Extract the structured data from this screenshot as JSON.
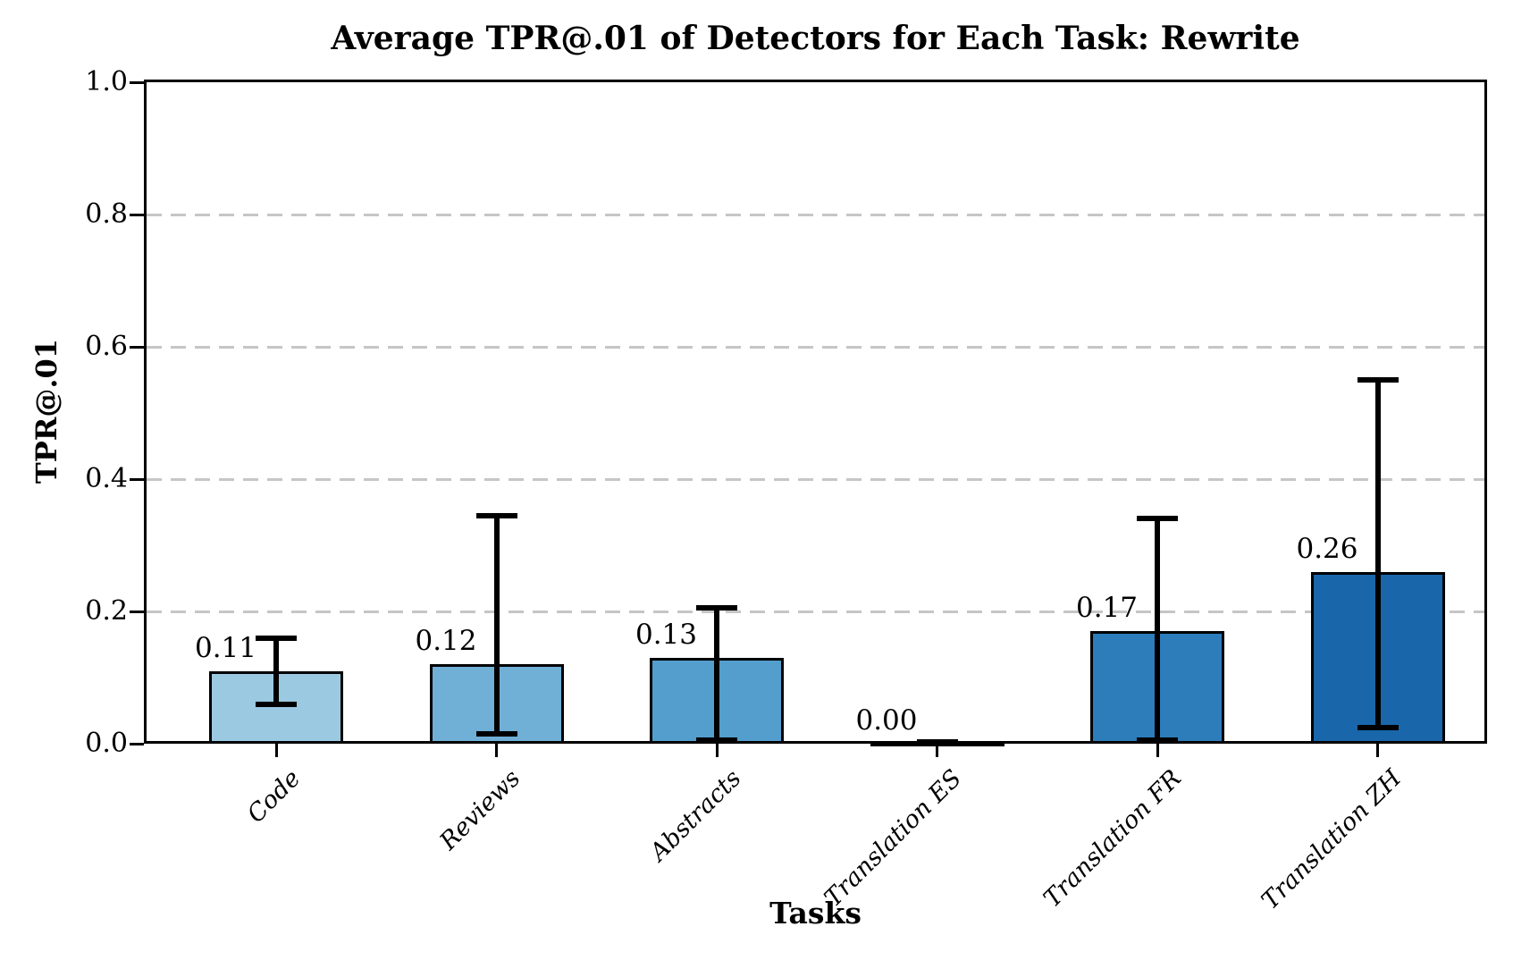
{
  "chart_data": {
    "type": "bar",
    "title": "Average TPR@.01 of Detectors for Each Task: Rewrite",
    "xlabel": "Tasks",
    "ylabel": "TPR@.01",
    "categories": [
      "Code",
      "Reviews",
      "Abstracts",
      "Translation ES",
      "Translation FR",
      "Translation ZH"
    ],
    "values": [
      0.11,
      0.12,
      0.13,
      0.0,
      0.17,
      0.26
    ],
    "value_labels": [
      "0.11",
      "0.12",
      "0.13",
      "0.00",
      "0.17",
      "0.26"
    ],
    "error_low": [
      0.06,
      0.015,
      0.005,
      0.0,
      0.005,
      0.025
    ],
    "error_high": [
      0.16,
      0.345,
      0.205,
      0.003,
      0.34,
      0.55
    ],
    "bar_colors": [
      "#9bc9e1",
      "#70b0d7",
      "#539ecd",
      "#3c8cc3",
      "#2d7dbb",
      "#1966ab"
    ],
    "bar_edge_color": "#000000",
    "error_color": "#000000",
    "gridline_color": "#c6c6c6",
    "ylim": [
      0,
      1.0
    ],
    "yticks": [
      0.0,
      0.2,
      0.4,
      0.6,
      0.8,
      1.0
    ],
    "ytick_labels": [
      "0.0",
      "0.2",
      "0.4",
      "0.6",
      "0.8",
      "1.0"
    ],
    "grid": "horizontal dashed",
    "legend": "none"
  }
}
